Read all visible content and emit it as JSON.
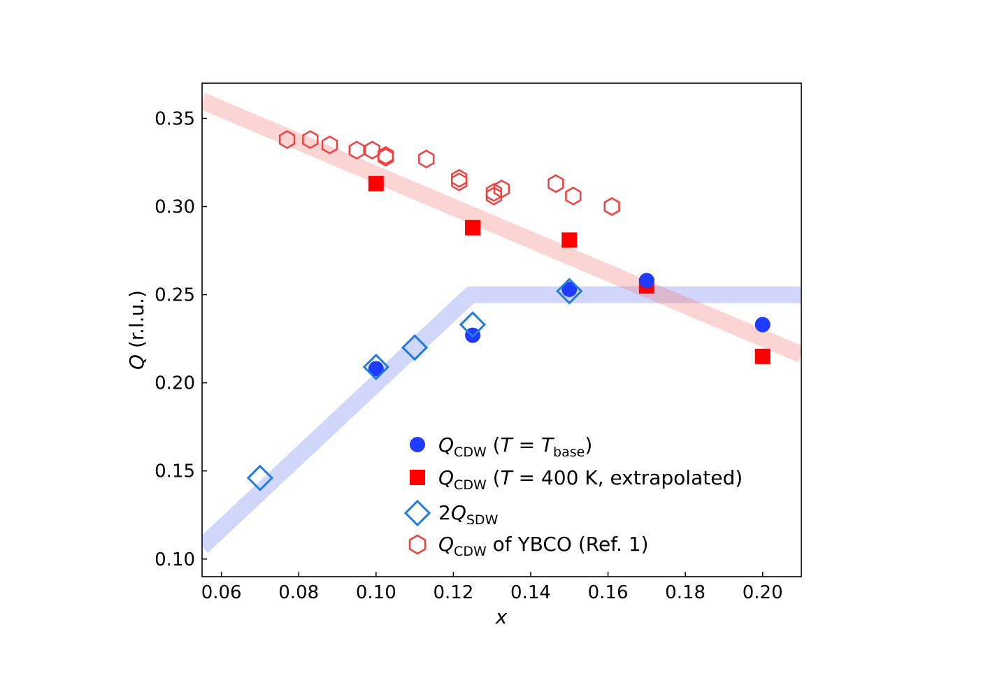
{
  "chart_data": {
    "type": "scatter",
    "title": "",
    "xlabel": "x",
    "ylabel": "(r.l.u.)",
    "ylabel_symbol": "Q",
    "xlim": [
      0.055,
      0.21
    ],
    "ylim": [
      0.09,
      0.37
    ],
    "xticks": [
      0.06,
      0.08,
      0.1,
      0.12,
      0.14,
      0.16,
      0.18,
      0.2
    ],
    "xtick_labels": [
      "0.06",
      "0.08",
      "0.10",
      "0.12",
      "0.14",
      "0.16",
      "0.18",
      "0.20"
    ],
    "yticks": [
      0.1,
      0.15,
      0.2,
      0.25,
      0.3,
      0.35
    ],
    "ytick_labels": [
      "0.10",
      "0.15",
      "0.20",
      "0.25",
      "0.30",
      "0.35"
    ],
    "grid": false,
    "legend_position": "lower-right",
    "series": [
      {
        "name": "Q_CDW (T = T_base)",
        "marker": "circle",
        "color": "#1f3bff",
        "x": [
          0.1,
          0.125,
          0.15,
          0.17,
          0.2
        ],
        "y": [
          0.208,
          0.227,
          0.253,
          0.258,
          0.233
        ]
      },
      {
        "name": "Q_CDW (T = 400 K, extrapolated)",
        "marker": "square",
        "color": "#ff0000",
        "x": [
          0.1,
          0.125,
          0.15,
          0.17,
          0.2
        ],
        "y": [
          0.313,
          0.288,
          0.281,
          0.255,
          0.215
        ]
      },
      {
        "name": "2Q_SDW",
        "marker": "diamond-open",
        "color": "#1e7be0",
        "x": [
          0.07,
          0.1,
          0.11,
          0.125,
          0.15
        ],
        "y": [
          0.146,
          0.209,
          0.22,
          0.233,
          0.252
        ]
      },
      {
        "name": "Q_CDW of YBCO (Ref. 1)",
        "marker": "hexagon-open",
        "color": "#f04040",
        "x": [
          0.077,
          0.083,
          0.088,
          0.095,
          0.099,
          0.1025,
          0.1025,
          0.113,
          0.1215,
          0.1215,
          0.1305,
          0.1305,
          0.1325,
          0.1465,
          0.151,
          0.161
        ],
        "y": [
          0.338,
          0.338,
          0.335,
          0.332,
          0.332,
          0.329,
          0.328,
          0.327,
          0.316,
          0.314,
          0.308,
          0.306,
          0.31,
          0.313,
          0.306,
          0.3
        ]
      }
    ],
    "guide_lines": [
      {
        "name": "blue-band",
        "color": "#6e82ee",
        "x": [
          0.055,
          0.1245,
          0.21
        ],
        "y": [
          0.107,
          0.25,
          0.25
        ]
      },
      {
        "name": "red-band",
        "color": "#f47a7a",
        "x": [
          0.055,
          0.21
        ],
        "y": [
          0.36,
          0.216
        ]
      }
    ]
  },
  "legend": {
    "items": [
      {
        "main": "Q",
        "sub": "CDW",
        "tail_parts": [
          " (",
          "T",
          " = ",
          "T",
          "base",
          ")"
        ]
      },
      {
        "main": "Q",
        "sub": "CDW",
        "tail_parts": [
          " (",
          "T",
          " = 400 K, extrapolated)"
        ]
      },
      {
        "prefix": "2",
        "main": "Q",
        "sub": "SDW"
      },
      {
        "main": "Q",
        "sub": "CDW",
        "tail_parts": [
          " of YBCO (Ref. 1)"
        ]
      }
    ]
  }
}
